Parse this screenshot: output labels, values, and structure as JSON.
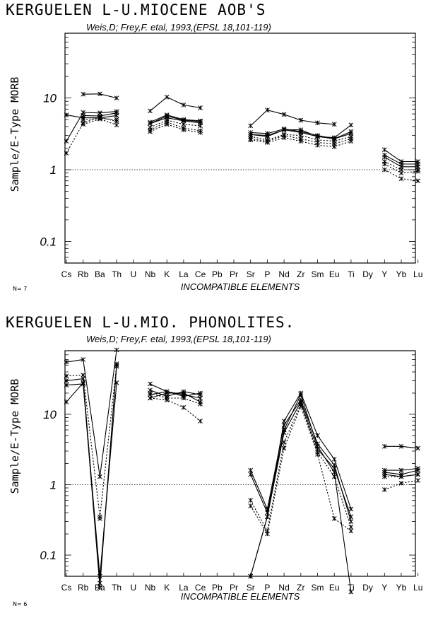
{
  "elements": [
    "Cs",
    "Rb",
    "Ba",
    "Th",
    "U",
    "Nb",
    "K",
    "La",
    "Ce",
    "Pb",
    "Pr",
    "Sr",
    "P",
    "Nd",
    "Zr",
    "Sm",
    "Eu",
    "Ti",
    "Dy",
    "Y",
    "Yb",
    "Lu"
  ],
  "chart_data": [
    {
      "type": "line",
      "title": "KERGUELEN L-U.MIOCENE AOB'S",
      "subtitle": "Weis,D; Frey,F. etal, 1993,(EPSL 18,101-119)",
      "xlabel": "INCOMPATIBLE ELEMENTS",
      "ylabel": "Sample/E-Type MORB",
      "n_label": "N= 7",
      "yscale": "log",
      "ylim": [
        0.05,
        80
      ],
      "yticks": [
        {
          "v": 0.1,
          "label": "0.1"
        },
        {
          "v": 1,
          "label": "1"
        },
        {
          "v": 10,
          "label": "10"
        }
      ],
      "reference_line": 1,
      "categories": [
        "Cs",
        "Rb",
        "Ba",
        "Th",
        "U",
        "Nb",
        "K",
        "La",
        "Ce",
        "Pb",
        "Pr",
        "Sr",
        "P",
        "Nd",
        "Zr",
        "Sm",
        "Eu",
        "Ti",
        "Dy",
        "Y",
        "Yb",
        "Lu"
      ],
      "series": [
        {
          "style": "solid",
          "values": [
            null,
            11.3,
            11.4,
            10,
            null,
            6.6,
            10.3,
            8,
            7.3,
            null,
            null,
            4.1,
            6.8,
            5.9,
            4.9,
            4.5,
            4.3,
            null,
            null,
            null,
            null,
            null
          ]
        },
        {
          "style": "solid",
          "values": [
            5.8,
            5.3,
            5.3,
            5.7,
            null,
            4.4,
            5.6,
            4.9,
            4.7,
            null,
            null,
            3.1,
            3,
            3.6,
            3.6,
            2.9,
            2.8,
            4.2,
            null,
            1.9,
            1.3,
            1.3
          ]
        },
        {
          "style": "solid",
          "values": [
            2.5,
            6.3,
            6.2,
            6.5,
            null,
            4.6,
            5.8,
            5,
            4.8,
            null,
            null,
            3.3,
            3.2,
            3.7,
            3.4,
            3,
            2.7,
            3.4,
            null,
            1.6,
            1.2,
            1.2
          ]
        },
        {
          "style": "solid",
          "values": [
            null,
            5.7,
            5.6,
            6.2,
            null,
            4.4,
            5.3,
            4.8,
            4.5,
            null,
            null,
            3.1,
            2.9,
            3.6,
            3.3,
            2.9,
            2.7,
            3.2,
            null,
            1.5,
            1.1,
            1.1
          ]
        },
        {
          "style": "dotted",
          "values": [
            null,
            5.0,
            5.2,
            5.0,
            null,
            3.9,
            4.9,
            4.3,
            4.1,
            null,
            null,
            2.9,
            2.6,
            3.1,
            3.0,
            2.6,
            2.5,
            2.9,
            null,
            1.3,
            1.0,
            1.0
          ]
        },
        {
          "style": "dotted",
          "values": [
            1.7,
            4.5,
            5.4,
            4.7,
            null,
            3.6,
            4.6,
            3.8,
            3.5,
            null,
            null,
            2.7,
            2.5,
            3,
            2.7,
            2.4,
            2.3,
            2.7,
            null,
            1.2,
            0.9,
            0.95
          ]
        },
        {
          "style": "dotted",
          "values": [
            null,
            4.3,
            5.1,
            4.2,
            null,
            3.4,
            4.3,
            3.6,
            3.3,
            null,
            null,
            2.6,
            2.4,
            2.8,
            2.5,
            2.2,
            2.1,
            2.5,
            null,
            1.0,
            0.75,
            0.7
          ]
        }
      ]
    },
    {
      "type": "line",
      "title": "KERGUELEN L-U.MIO. PHONOLITES.",
      "subtitle": "Weis,D; Frey,F. etal, 1993,(EPSL 18,101-119)",
      "xlabel": "INCOMPATIBLE ELEMENTS",
      "ylabel": "Sample/E-Type MORB",
      "n_label": "N= 6",
      "yscale": "log",
      "ylim": [
        0.05,
        80
      ],
      "yticks": [
        {
          "v": 0.1,
          "label": "0.1"
        },
        {
          "v": 1,
          "label": "1"
        },
        {
          "v": 10,
          "label": "10"
        }
      ],
      "reference_line": 1,
      "categories": [
        "Cs",
        "Rb",
        "Ba",
        "Th",
        "U",
        "Nb",
        "K",
        "La",
        "Ce",
        "Pb",
        "Pr",
        "Sr",
        "P",
        "Nd",
        "Zr",
        "Sm",
        "Eu",
        "Ti",
        "Dy",
        "Y",
        "Yb",
        "Lu"
      ],
      "series": [
        {
          "style": "solid",
          "values": [
            55,
            60,
            1.3,
            82,
            null,
            27,
            21,
            18,
            20,
            null,
            null,
            0.05,
            0.35,
            8,
            20,
            5,
            2.3,
            0.45,
            null,
            3.5,
            3.5,
            3.3
          ]
        },
        {
          "style": "solid",
          "values": [
            30,
            32,
            0.04,
            48,
            null,
            22,
            18,
            21,
            19,
            null,
            null,
            1.6,
            0.45,
            7,
            16,
            3.8,
            1.9,
            0.3,
            null,
            1.6,
            1.6,
            1.7
          ]
        },
        {
          "style": "solid",
          "values": [
            15,
            28,
            0.035,
            52,
            null,
            19,
            21,
            19,
            17,
            null,
            null,
            1.4,
            0.4,
            6,
            19,
            3.5,
            1.5,
            0.03,
            null,
            1.5,
            1.4,
            1.6
          ]
        },
        {
          "style": "solid",
          "values": [
            26,
            27,
            0.05,
            28,
            null,
            17,
            20,
            20,
            15,
            null,
            null,
            0.05,
            0.35,
            5.5,
            15,
            3.2,
            1.7,
            0.35,
            null,
            1.4,
            1.3,
            1.4
          ]
        },
        {
          "style": "dotted",
          "values": [
            35,
            36,
            0.35,
            50,
            null,
            20,
            17,
            17,
            14,
            null,
            null,
            0.6,
            0.22,
            4,
            14,
            2.9,
            1.3,
            0.25,
            null,
            1.3,
            1.3,
            1.4
          ]
        },
        {
          "style": "dotted",
          "values": [
            null,
            null,
            0.33,
            null,
            null,
            17,
            16,
            12.5,
            8,
            null,
            null,
            0.5,
            0.2,
            3.3,
            13,
            2.7,
            0.33,
            0.22,
            null,
            0.85,
            1.05,
            1.15
          ]
        }
      ]
    }
  ]
}
